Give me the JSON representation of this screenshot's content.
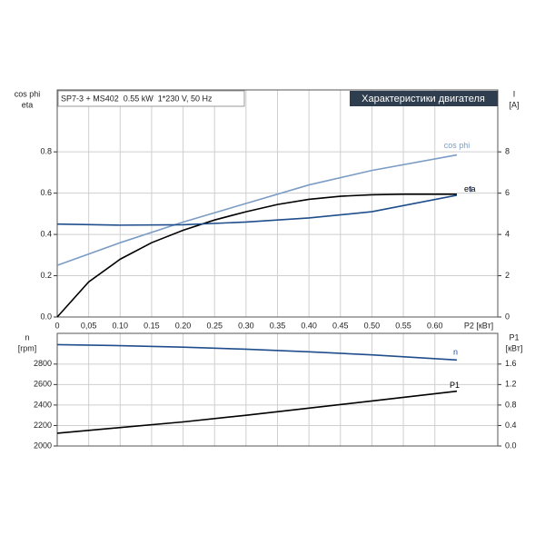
{
  "chart_data": [
    {
      "type": "line",
      "title": "Характеристики двигателя",
      "subtitle": "SP7-3 + MS402  0.55 kW  1*230 V, 50 Hz",
      "ylabel": [
        "cos phi",
        "eta"
      ],
      "y2label": [
        "I",
        "[A]"
      ],
      "xlabel": "P2 [кВт]",
      "xlim": [
        0,
        0.7
      ],
      "xticks": [
        0,
        {
          "value": 0.05,
          "label": "0,05"
        },
        {
          "value": 0.1,
          "label": "0.10"
        },
        {
          "value": 0.15,
          "label": "0.15"
        },
        {
          "value": 0.2,
          "label": "0.20"
        },
        {
          "value": 0.25,
          "label": "0.25"
        },
        {
          "value": 0.3,
          "label": "0.30"
        },
        {
          "value": 0.35,
          "label": "0.35"
        },
        {
          "value": 0.4,
          "label": "0.40"
        },
        {
          "value": 0.45,
          "label": "0.45"
        },
        {
          "value": 0.5,
          "label": "0.50"
        },
        {
          "value": 0.55,
          "label": "0.55"
        },
        {
          "value": 0.6,
          "label": "0.60"
        }
      ],
      "xtick_labels": true,
      "ylim": [
        0,
        1.1
      ],
      "yticks": [
        {
          "value": 0,
          "label": "0.0"
        },
        0.2,
        0.4,
        0.6,
        0.8
      ],
      "y2lim": [
        0,
        11
      ],
      "y2ticks": [
        0,
        2,
        4,
        6,
        8
      ],
      "grid": true,
      "series": [
        {
          "name": "cos phi",
          "color": "#7b9cc4",
          "x": [
            0,
            0.1,
            0.2,
            0.3,
            0.4,
            0.5,
            0.635
          ],
          "values": [
            0.25,
            0.36,
            0.46,
            0.55,
            0.64,
            0.71,
            0.785
          ]
        },
        {
          "name": "eta",
          "color": "#000000",
          "x": [
            0,
            0.05,
            0.1,
            0.15,
            0.2,
            0.25,
            0.3,
            0.35,
            0.4,
            0.45,
            0.5,
            0.55,
            0.635
          ],
          "values": [
            0,
            0.17,
            0.28,
            0.36,
            0.42,
            0.47,
            0.51,
            0.545,
            0.57,
            0.585,
            0.592,
            0.595,
            0.595
          ]
        },
        {
          "name": "I",
          "color": "#1f4e8c",
          "axis": "y2",
          "x": [
            0,
            0.1,
            0.2,
            0.3,
            0.4,
            0.5,
            0.635
          ],
          "values": [
            4.5,
            4.45,
            4.47,
            4.6,
            4.8,
            5.1,
            5.9
          ]
        }
      ]
    },
    {
      "type": "line",
      "ylabel": [
        "n",
        "[rpm]"
      ],
      "y2label": [
        "P1",
        "[кВт]"
      ],
      "xlim": [
        0,
        0.7
      ],
      "xticks": [
        0,
        0.05,
        0.1,
        0.15,
        0.2,
        0.25,
        0.3,
        0.35,
        0.4,
        0.45,
        0.5,
        0.55,
        0.6
      ],
      "xtick_labels": false,
      "ylim": [
        2000,
        3100
      ],
      "yticks": [
        2000,
        2200,
        2400,
        2600,
        2800
      ],
      "y2lim": [
        0,
        2.2
      ],
      "y2ticks": [
        {
          "value": 0,
          "label": "0.0"
        },
        0.4,
        0.8,
        1.2,
        1.6
      ],
      "grid": true,
      "series": [
        {
          "name": "n",
          "color": "#1f4e8c",
          "x": [
            0,
            0.1,
            0.2,
            0.3,
            0.4,
            0.5,
            0.635
          ],
          "values": [
            2990,
            2980,
            2965,
            2945,
            2920,
            2890,
            2840
          ]
        },
        {
          "name": "P1",
          "color": "#000000",
          "axis": "y2",
          "x": [
            0,
            0.1,
            0.2,
            0.3,
            0.4,
            0.5,
            0.635
          ],
          "values": [
            0.25,
            0.36,
            0.47,
            0.6,
            0.74,
            0.88,
            1.07
          ]
        }
      ]
    }
  ]
}
